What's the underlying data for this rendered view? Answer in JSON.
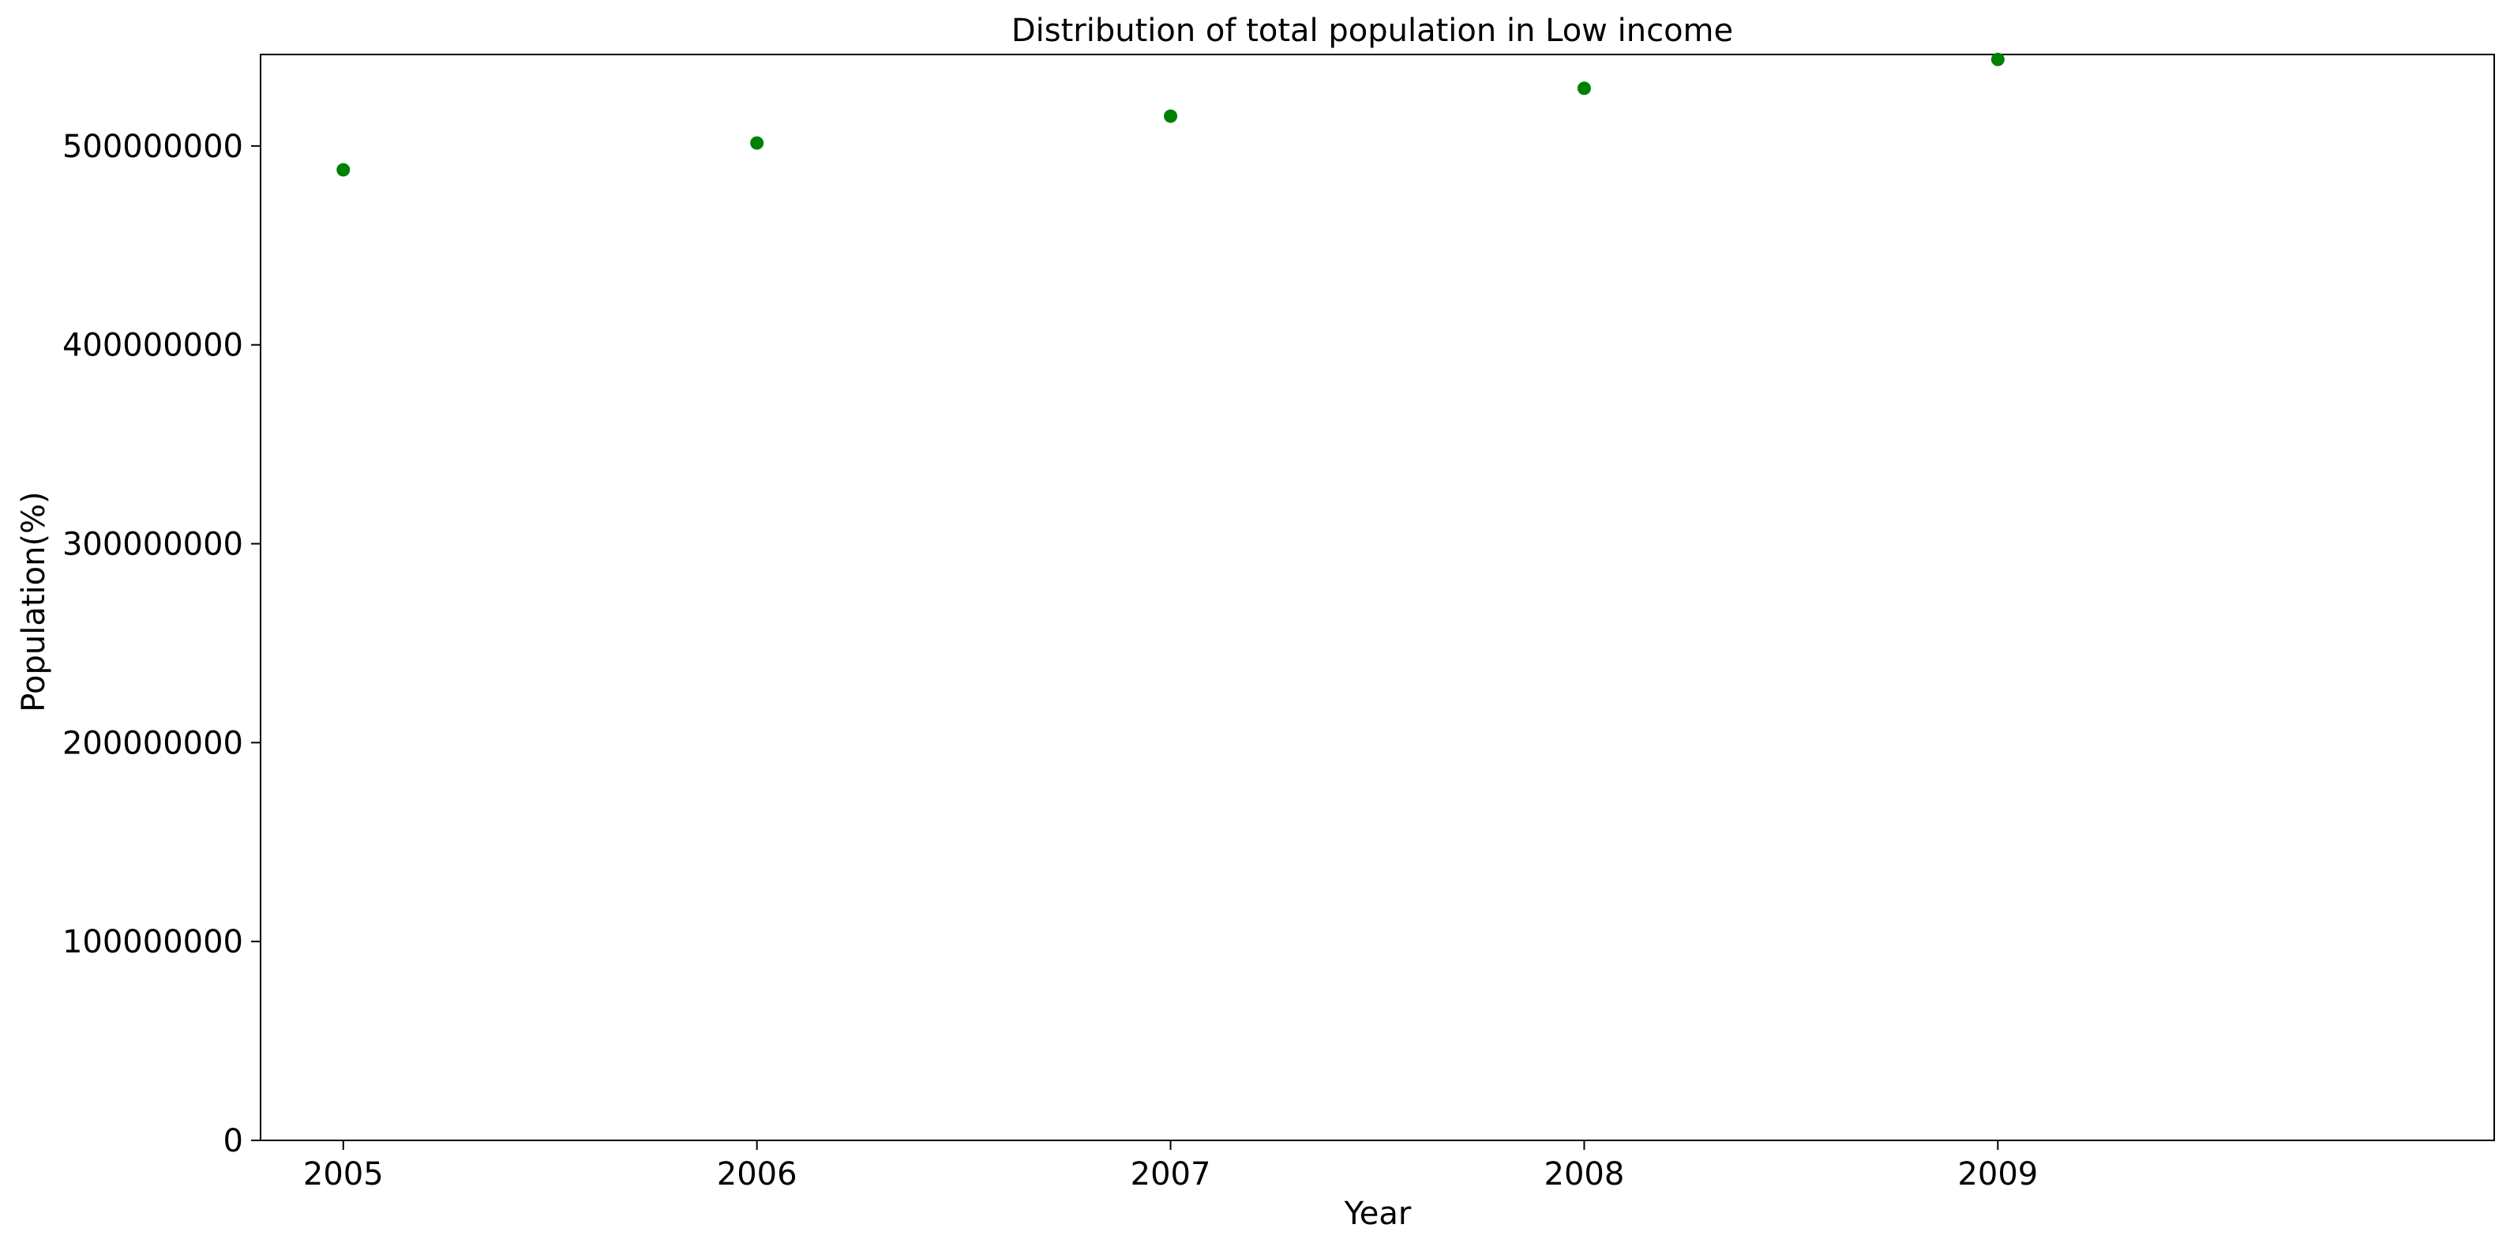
{
  "chart_data": {
    "type": "scatter",
    "title": "Distribution of total population in Low income",
    "xlabel": "Year",
    "ylabel": "Population(%)",
    "x": [
      2005,
      2006,
      2007,
      2008,
      2009
    ],
    "series": [
      {
        "values": [
          488000000,
          501500000,
          515000000,
          529000000,
          543500000
        ],
        "color": "#008000"
      }
    ],
    "xticks": [
      "2005",
      "2006",
      "2007",
      "2008",
      "2009"
    ],
    "yticks": [
      {
        "value": 0,
        "label": "0"
      },
      {
        "value": 100000000,
        "label": "100000000"
      },
      {
        "value": 200000000,
        "label": "200000000"
      },
      {
        "value": 300000000,
        "label": "300000000"
      },
      {
        "value": 400000000,
        "label": "400000000"
      },
      {
        "value": 500000000,
        "label": "500000000"
      }
    ],
    "xlim": [
      2004.8,
      2010.2
    ],
    "ylim": [
      0,
      546000000
    ],
    "grid": false,
    "legend": "none"
  }
}
